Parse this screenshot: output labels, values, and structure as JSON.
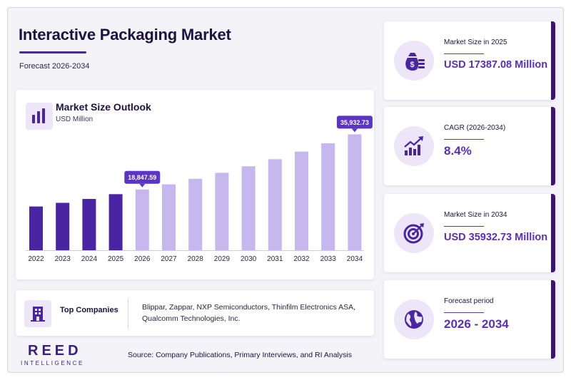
{
  "header": {
    "title": "Interactive Packaging Market",
    "subtitle": "Forecast 2026-2034"
  },
  "chart_data": {
    "type": "bar",
    "title": "Market Size Outlook",
    "unit": "USD Million",
    "categories": [
      "2022",
      "2023",
      "2024",
      "2025",
      "2026",
      "2027",
      "2028",
      "2029",
      "2030",
      "2031",
      "2032",
      "2033",
      "2034"
    ],
    "values": [
      13560,
      14700,
      15900,
      17387.08,
      18847.59,
      20430,
      22150,
      24010,
      26030,
      28220,
      30590,
      33160,
      35932.73
    ],
    "historical_until": "2025",
    "ylim": [
      0,
      40000
    ],
    "annotations": [
      {
        "category": "2026",
        "label": "18,847.59"
      },
      {
        "category": "2034",
        "label": "35,932.73"
      }
    ],
    "colors": {
      "historical": "#4a25a3",
      "forecast": "#c6b8ee",
      "callout": "#5b34c4"
    }
  },
  "companies": {
    "label": "Top Companies",
    "list": "Blippar, Zappar, NXP Semiconductors, Thinfilm Electronics ASA, Qualcomm Technologies, Inc."
  },
  "stats": [
    {
      "label": "Market Size in 2025",
      "value": "USD 17387.08 Million",
      "icon": "money-bag-icon"
    },
    {
      "label": "CAGR (2026-2034)",
      "value": "8.4%",
      "icon": "growth-chart-icon"
    },
    {
      "label": "Market Size in 2034",
      "value": "USD 35932.73 Million",
      "icon": "target-icon"
    },
    {
      "label": "Forecast period",
      "value": "2026 - 2034",
      "icon": "globe-icon"
    }
  ],
  "footer": {
    "logo_main": "REED",
    "logo_sub": "INTELLIGENCE",
    "source": "Source: Company Publications, Primary Interviews, and RI Analysis"
  }
}
